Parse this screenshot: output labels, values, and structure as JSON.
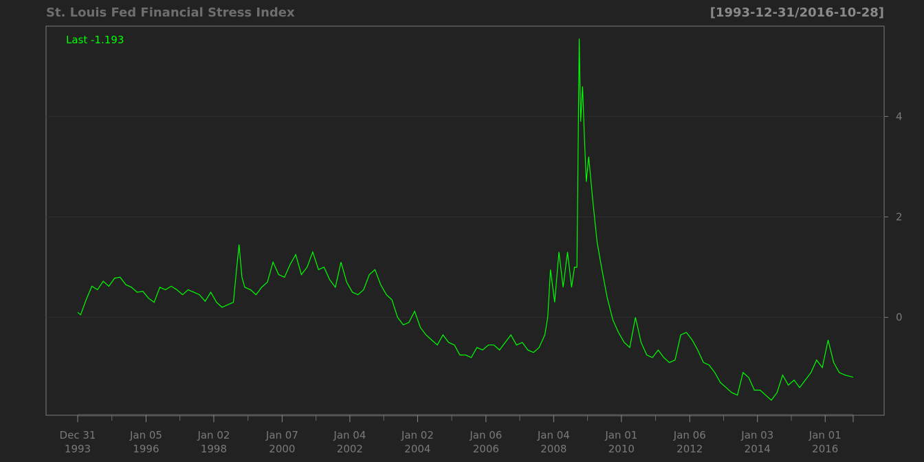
{
  "title": "St. Louis Fed Financial Stress Index",
  "date_range": "[1993-12-31/2016-10-28]",
  "last_label": "Last -1.193",
  "colors": {
    "background": "#222222",
    "line": "#00ff00",
    "axis_text": "#7a7a7a",
    "grid": "#2e2e2e",
    "border": "#7a7a7a"
  },
  "chart_data": {
    "type": "line",
    "title": "St. Louis Fed Financial Stress Index",
    "ylim": [
      -1.95,
      5.8
    ],
    "yticks": [
      0,
      2,
      4
    ],
    "grid": true,
    "y_axis_position": "right",
    "x_ticks": [
      {
        "date": "1993-12-31",
        "line1": "Dec 31",
        "line2": "1993"
      },
      {
        "date": "1996-01-05",
        "line1": "Jan 05",
        "line2": "1996"
      },
      {
        "date": "1998-01-02",
        "line1": "Jan 02",
        "line2": "1998"
      },
      {
        "date": "2000-01-07",
        "line1": "Jan 07",
        "line2": "2000"
      },
      {
        "date": "2002-01-04",
        "line1": "Jan 04",
        "line2": "2002"
      },
      {
        "date": "2004-01-02",
        "line1": "Jan 02",
        "line2": "2004"
      },
      {
        "date": "2006-01-06",
        "line1": "Jan 06",
        "line2": "2006"
      },
      {
        "date": "2008-01-04",
        "line1": "Jan 04",
        "line2": "2008"
      },
      {
        "date": "2010-01-01",
        "line1": "Jan 01",
        "line2": "2010"
      },
      {
        "date": "2012-01-06",
        "line1": "Jan 06",
        "line2": "2012"
      },
      {
        "date": "2014-01-03",
        "line1": "Jan 03",
        "line2": "2014"
      },
      {
        "date": "2016-01-01",
        "line1": "Jan 01",
        "line2": "2016"
      }
    ],
    "series": [
      {
        "values": [
          [
            "1993-12-31",
            0.1
          ],
          [
            "1994-02-01",
            0.05
          ],
          [
            "1994-04-01",
            0.35
          ],
          [
            "1994-06-01",
            0.62
          ],
          [
            "1994-08-01",
            0.55
          ],
          [
            "1994-10-01",
            0.72
          ],
          [
            "1994-12-01",
            0.62
          ],
          [
            "1995-02-01",
            0.78
          ],
          [
            "1995-04-01",
            0.8
          ],
          [
            "1995-06-01",
            0.65
          ],
          [
            "1995-08-01",
            0.6
          ],
          [
            "1995-10-01",
            0.5
          ],
          [
            "1995-12-01",
            0.52
          ],
          [
            "1996-02-01",
            0.38
          ],
          [
            "1996-04-01",
            0.3
          ],
          [
            "1996-06-01",
            0.6
          ],
          [
            "1996-08-01",
            0.55
          ],
          [
            "1996-10-01",
            0.62
          ],
          [
            "1996-12-01",
            0.55
          ],
          [
            "1997-02-01",
            0.45
          ],
          [
            "1997-04-01",
            0.55
          ],
          [
            "1997-06-01",
            0.5
          ],
          [
            "1997-08-01",
            0.45
          ],
          [
            "1997-10-01",
            0.32
          ],
          [
            "1997-12-01",
            0.5
          ],
          [
            "1998-02-01",
            0.3
          ],
          [
            "1998-04-01",
            0.2
          ],
          [
            "1998-06-01",
            0.25
          ],
          [
            "1998-08-01",
            0.3
          ],
          [
            "1998-09-01",
            0.9
          ],
          [
            "1998-10-01",
            1.45
          ],
          [
            "1998-11-01",
            0.8
          ],
          [
            "1998-12-01",
            0.6
          ],
          [
            "1999-02-01",
            0.55
          ],
          [
            "1999-04-01",
            0.45
          ],
          [
            "1999-06-01",
            0.6
          ],
          [
            "1999-08-01",
            0.7
          ],
          [
            "1999-10-01",
            1.1
          ],
          [
            "1999-12-01",
            0.85
          ],
          [
            "2000-02-01",
            0.8
          ],
          [
            "2000-04-01",
            1.05
          ],
          [
            "2000-06-01",
            1.25
          ],
          [
            "2000-08-01",
            0.85
          ],
          [
            "2000-10-01",
            1.0
          ],
          [
            "2000-12-01",
            1.3
          ],
          [
            "2001-02-01",
            0.95
          ],
          [
            "2001-04-01",
            1.0
          ],
          [
            "2001-06-01",
            0.75
          ],
          [
            "2001-08-01",
            0.6
          ],
          [
            "2001-10-01",
            1.1
          ],
          [
            "2001-12-01",
            0.7
          ],
          [
            "2002-02-01",
            0.5
          ],
          [
            "2002-04-01",
            0.45
          ],
          [
            "2002-06-01",
            0.55
          ],
          [
            "2002-08-01",
            0.85
          ],
          [
            "2002-10-01",
            0.95
          ],
          [
            "2002-12-01",
            0.65
          ],
          [
            "2003-02-01",
            0.45
          ],
          [
            "2003-04-01",
            0.35
          ],
          [
            "2003-06-01",
            0.0
          ],
          [
            "2003-08-01",
            -0.15
          ],
          [
            "2003-10-01",
            -0.1
          ],
          [
            "2003-12-01",
            0.12
          ],
          [
            "2004-02-01",
            -0.2
          ],
          [
            "2004-04-01",
            -0.35
          ],
          [
            "2004-06-01",
            -0.45
          ],
          [
            "2004-08-01",
            -0.55
          ],
          [
            "2004-10-01",
            -0.35
          ],
          [
            "2004-12-01",
            -0.5
          ],
          [
            "2005-02-01",
            -0.55
          ],
          [
            "2005-04-01",
            -0.75
          ],
          [
            "2005-06-01",
            -0.75
          ],
          [
            "2005-08-01",
            -0.8
          ],
          [
            "2005-10-01",
            -0.6
          ],
          [
            "2005-12-01",
            -0.65
          ],
          [
            "2006-02-01",
            -0.55
          ],
          [
            "2006-04-01",
            -0.55
          ],
          [
            "2006-06-01",
            -0.65
          ],
          [
            "2006-08-01",
            -0.5
          ],
          [
            "2006-10-01",
            -0.35
          ],
          [
            "2006-12-01",
            -0.55
          ],
          [
            "2007-02-01",
            -0.5
          ],
          [
            "2007-04-01",
            -0.65
          ],
          [
            "2007-06-01",
            -0.7
          ],
          [
            "2007-08-01",
            -0.6
          ],
          [
            "2007-10-01",
            -0.35
          ],
          [
            "2007-11-01",
            0.0
          ],
          [
            "2007-12-01",
            0.95
          ],
          [
            "2008-01-15",
            0.3
          ],
          [
            "2008-03-01",
            1.3
          ],
          [
            "2008-04-15",
            0.6
          ],
          [
            "2008-06-01",
            1.3
          ],
          [
            "2008-07-15",
            0.6
          ],
          [
            "2008-08-15",
            1.0
          ],
          [
            "2008-09-10",
            1.0
          ],
          [
            "2008-10-05",
            5.55
          ],
          [
            "2008-10-20",
            3.9
          ],
          [
            "2008-11-10",
            4.6
          ],
          [
            "2008-12-01",
            3.5
          ],
          [
            "2008-12-20",
            2.7
          ],
          [
            "2009-01-15",
            3.2
          ],
          [
            "2009-03-01",
            2.3
          ],
          [
            "2009-04-15",
            1.5
          ],
          [
            "2009-06-01",
            1.0
          ],
          [
            "2009-08-01",
            0.4
          ],
          [
            "2009-10-01",
            -0.05
          ],
          [
            "2009-12-01",
            -0.3
          ],
          [
            "2010-02-01",
            -0.5
          ],
          [
            "2010-04-01",
            -0.6
          ],
          [
            "2010-06-01",
            0.0
          ],
          [
            "2010-08-01",
            -0.5
          ],
          [
            "2010-10-01",
            -0.75
          ],
          [
            "2010-12-01",
            -0.8
          ],
          [
            "2011-02-01",
            -0.65
          ],
          [
            "2011-04-01",
            -0.8
          ],
          [
            "2011-06-01",
            -0.9
          ],
          [
            "2011-08-01",
            -0.85
          ],
          [
            "2011-10-01",
            -0.35
          ],
          [
            "2011-12-01",
            -0.3
          ],
          [
            "2012-02-01",
            -0.45
          ],
          [
            "2012-04-01",
            -0.65
          ],
          [
            "2012-06-01",
            -0.9
          ],
          [
            "2012-08-01",
            -0.95
          ],
          [
            "2012-10-01",
            -1.1
          ],
          [
            "2012-12-01",
            -1.3
          ],
          [
            "2013-02-01",
            -1.4
          ],
          [
            "2013-04-01",
            -1.5
          ],
          [
            "2013-06-01",
            -1.55
          ],
          [
            "2013-08-01",
            -1.1
          ],
          [
            "2013-10-01",
            -1.2
          ],
          [
            "2013-12-01",
            -1.45
          ],
          [
            "2014-02-01",
            -1.45
          ],
          [
            "2014-04-01",
            -1.55
          ],
          [
            "2014-06-01",
            -1.65
          ],
          [
            "2014-08-01",
            -1.5
          ],
          [
            "2014-10-01",
            -1.15
          ],
          [
            "2014-12-01",
            -1.35
          ],
          [
            "2015-02-01",
            -1.25
          ],
          [
            "2015-04-01",
            -1.4
          ],
          [
            "2015-06-01",
            -1.25
          ],
          [
            "2015-08-01",
            -1.1
          ],
          [
            "2015-10-01",
            -0.85
          ],
          [
            "2015-12-01",
            -1.0
          ],
          [
            "2016-02-01",
            -0.45
          ],
          [
            "2016-04-01",
            -0.9
          ],
          [
            "2016-06-01",
            -1.1
          ],
          [
            "2016-08-01",
            -1.15
          ],
          [
            "2016-10-28",
            -1.193
          ]
        ]
      }
    ]
  }
}
